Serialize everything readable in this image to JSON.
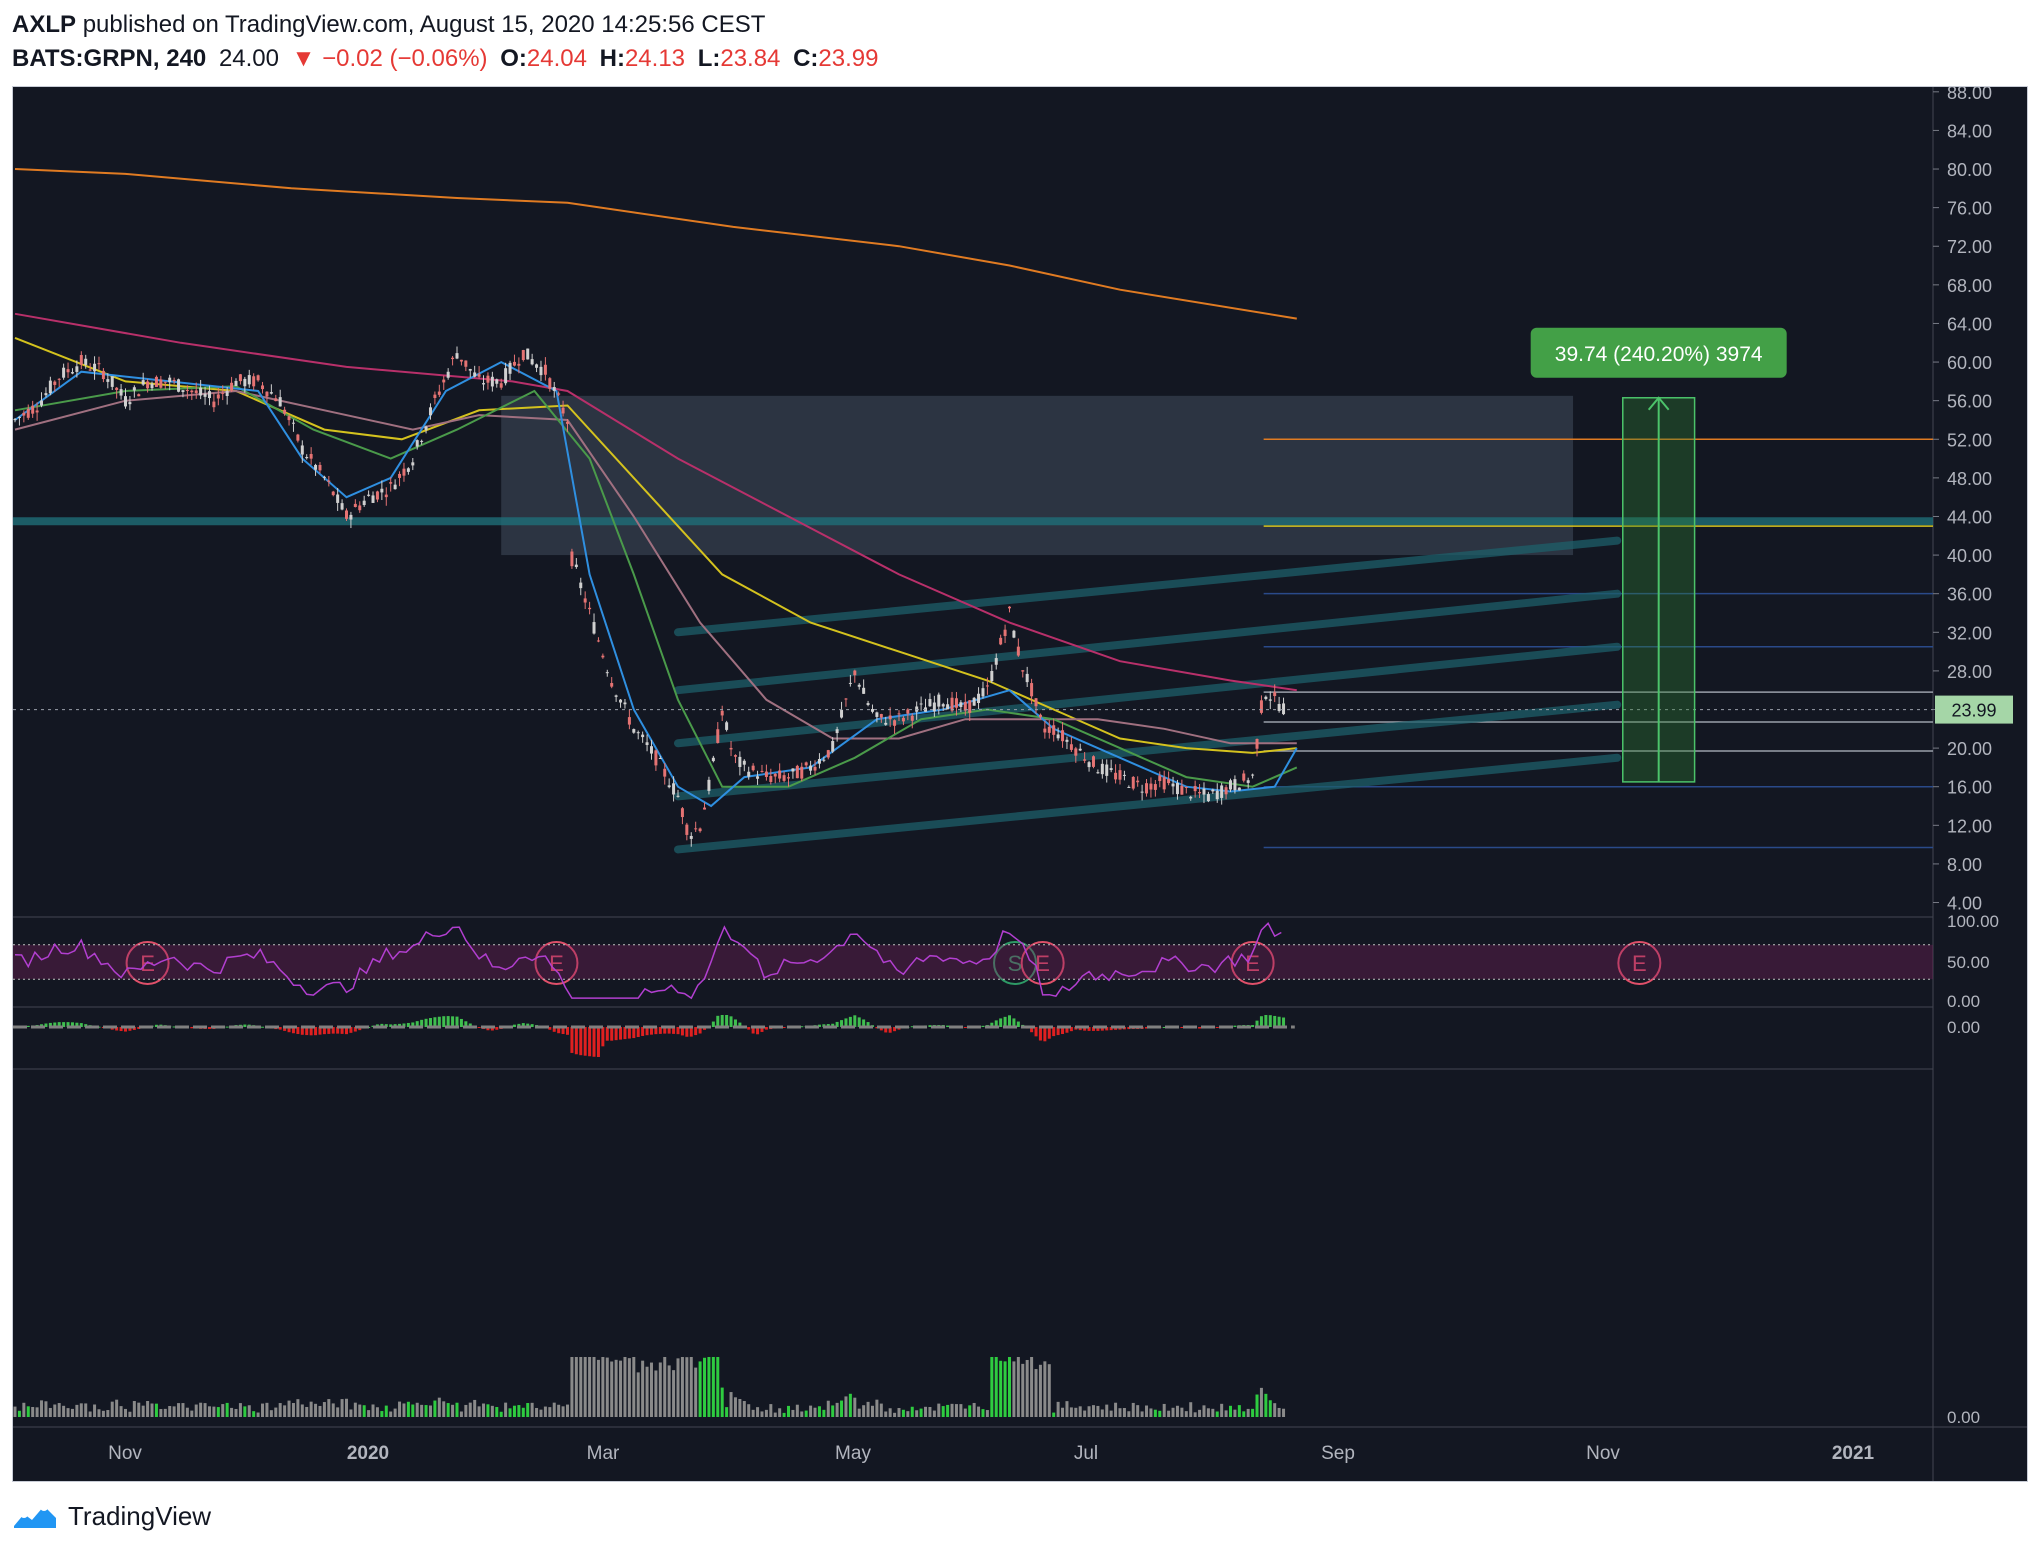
{
  "header": {
    "publisher": "AXLP",
    "published_text": "published on TradingView.com, August 15, 2020 14:25:56 CEST",
    "symbol": "BATS:GRPN, 240",
    "last": "24.00",
    "change": "▼ −0.02 (−0.06%)",
    "o_label": "O:",
    "o": "24.04",
    "h_label": "H:",
    "h": "24.13",
    "l_label": "L:",
    "l": "23.84",
    "c_label": "C:",
    "c": "23.99"
  },
  "footer": {
    "brand": "TradingView",
    "logo_icon": "tradingview-logo-icon"
  },
  "colors": {
    "background": "#131722",
    "candle_up": "#d0d0d0",
    "candle_down": "#e57373",
    "ma_orange": "#e07b22",
    "ma_magenta": "#b8306a",
    "ma_yellow": "#d4c21e",
    "ma_blue": "#2f8fe0",
    "ma_green": "#4a9a4a",
    "ma_pink": "#a07080",
    "channel": "#1e5f6a",
    "rsi": "#b23fd0",
    "measure_green": "#4cc36a"
  },
  "chart_data": {
    "type": "candlestick",
    "x_ticks": [
      "Nov",
      "2020",
      "Mar",
      "May",
      "Jul",
      "Sep",
      "Nov",
      "2021"
    ],
    "y_ticks": [
      "88.00",
      "84.00",
      "80.00",
      "76.00",
      "72.00",
      "68.00",
      "64.00",
      "60.00",
      "56.00",
      "52.00",
      "48.00",
      "44.00",
      "40.00",
      "36.00",
      "32.00",
      "28.00",
      "24.00",
      "20.00",
      "16.00",
      "12.00",
      "8.00",
      "4.00"
    ],
    "ylim": [
      2.5,
      88.5
    ],
    "last_price_label": "23.99",
    "price_path": [
      [
        0,
        54
      ],
      [
        20,
        55.5
      ],
      [
        40,
        58.5
      ],
      [
        60,
        60
      ],
      [
        80,
        59
      ],
      [
        100,
        56
      ],
      [
        120,
        58
      ],
      [
        140,
        58
      ],
      [
        160,
        57
      ],
      [
        180,
        56
      ],
      [
        200,
        58
      ],
      [
        220,
        58
      ],
      [
        240,
        56
      ],
      [
        260,
        51
      ],
      [
        280,
        48
      ],
      [
        300,
        44
      ],
      [
        320,
        46
      ],
      [
        340,
        47
      ],
      [
        360,
        50
      ],
      [
        380,
        56
      ],
      [
        400,
        61
      ],
      [
        420,
        58
      ],
      [
        440,
        58
      ],
      [
        460,
        61
      ],
      [
        480,
        59
      ],
      [
        500,
        54
      ],
      [
        503,
        40
      ],
      [
        520,
        34
      ],
      [
        540,
        27
      ],
      [
        560,
        22
      ],
      [
        580,
        19
      ],
      [
        600,
        15
      ],
      [
        610,
        11
      ],
      [
        620,
        12
      ],
      [
        630,
        17
      ],
      [
        640,
        24
      ],
      [
        650,
        19
      ],
      [
        660,
        18
      ],
      [
        680,
        17
      ],
      [
        700,
        17
      ],
      [
        720,
        18
      ],
      [
        740,
        20
      ],
      [
        760,
        28
      ],
      [
        770,
        25
      ],
      [
        780,
        23
      ],
      [
        800,
        23
      ],
      [
        820,
        24
      ],
      [
        840,
        25
      ],
      [
        860,
        24
      ],
      [
        880,
        26
      ],
      [
        900,
        34
      ],
      [
        910,
        29
      ],
      [
        920,
        26
      ],
      [
        930,
        22
      ],
      [
        940,
        22
      ],
      [
        960,
        20
      ],
      [
        980,
        18
      ],
      [
        1000,
        17
      ],
      [
        1020,
        16
      ],
      [
        1040,
        16.5
      ],
      [
        1060,
        15.5
      ],
      [
        1080,
        15
      ],
      [
        1100,
        16
      ],
      [
        1120,
        17
      ],
      [
        1130,
        26
      ],
      [
        1140,
        25
      ],
      [
        1150,
        24
      ]
    ],
    "moving_averages": [
      {
        "color_key": "ma_orange",
        "points": [
          [
            0,
            80
          ],
          [
            100,
            79.5
          ],
          [
            250,
            78
          ],
          [
            400,
            77
          ],
          [
            500,
            76.5
          ],
          [
            650,
            74
          ],
          [
            800,
            72
          ],
          [
            900,
            70
          ],
          [
            1000,
            67.5
          ],
          [
            1160,
            64.5
          ]
        ]
      },
      {
        "color_key": "ma_magenta",
        "points": [
          [
            0,
            65
          ],
          [
            150,
            62
          ],
          [
            300,
            59.5
          ],
          [
            450,
            58
          ],
          [
            500,
            57
          ],
          [
            600,
            50
          ],
          [
            700,
            44
          ],
          [
            800,
            38
          ],
          [
            900,
            33
          ],
          [
            1000,
            29
          ],
          [
            1100,
            27
          ],
          [
            1160,
            26
          ]
        ]
      },
      {
        "color_key": "ma_yellow",
        "points": [
          [
            0,
            62.5
          ],
          [
            100,
            58
          ],
          [
            200,
            57
          ],
          [
            280,
            53
          ],
          [
            350,
            52
          ],
          [
            420,
            55
          ],
          [
            500,
            55.5
          ],
          [
            560,
            48
          ],
          [
            640,
            38
          ],
          [
            720,
            33
          ],
          [
            800,
            30
          ],
          [
            880,
            27
          ],
          [
            940,
            24
          ],
          [
            1000,
            21
          ],
          [
            1060,
            20
          ],
          [
            1120,
            19.5
          ],
          [
            1160,
            20
          ]
        ]
      },
      {
        "color_key": "ma_pink",
        "points": [
          [
            0,
            53
          ],
          [
            100,
            56
          ],
          [
            200,
            57
          ],
          [
            280,
            55
          ],
          [
            360,
            53
          ],
          [
            420,
            54.5
          ],
          [
            500,
            54
          ],
          [
            560,
            44
          ],
          [
            620,
            33
          ],
          [
            680,
            25
          ],
          [
            740,
            21
          ],
          [
            800,
            21
          ],
          [
            860,
            23
          ],
          [
            920,
            23
          ],
          [
            980,
            23
          ],
          [
            1040,
            22
          ],
          [
            1100,
            20.5
          ],
          [
            1160,
            20.5
          ]
        ]
      },
      {
        "color_key": "ma_green",
        "points": [
          [
            0,
            55
          ],
          [
            100,
            57
          ],
          [
            200,
            57.5
          ],
          [
            270,
            53
          ],
          [
            340,
            50
          ],
          [
            400,
            53
          ],
          [
            470,
            57
          ],
          [
            520,
            50
          ],
          [
            560,
            38
          ],
          [
            600,
            25
          ],
          [
            640,
            16
          ],
          [
            700,
            16
          ],
          [
            760,
            19
          ],
          [
            820,
            23
          ],
          [
            880,
            24
          ],
          [
            940,
            23
          ],
          [
            1000,
            20
          ],
          [
            1060,
            17
          ],
          [
            1120,
            16
          ],
          [
            1160,
            18
          ]
        ]
      },
      {
        "color_key": "ma_blue",
        "points": [
          [
            0,
            54
          ],
          [
            60,
            59
          ],
          [
            140,
            58
          ],
          [
            220,
            57
          ],
          [
            260,
            50
          ],
          [
            300,
            46
          ],
          [
            340,
            48
          ],
          [
            390,
            57
          ],
          [
            440,
            60
          ],
          [
            490,
            57
          ],
          [
            520,
            38
          ],
          [
            560,
            24
          ],
          [
            600,
            16
          ],
          [
            630,
            14
          ],
          [
            660,
            17
          ],
          [
            720,
            18
          ],
          [
            780,
            23
          ],
          [
            840,
            24
          ],
          [
            900,
            26
          ],
          [
            940,
            22
          ],
          [
            1000,
            19
          ],
          [
            1060,
            16
          ],
          [
            1100,
            15.5
          ],
          [
            1140,
            16
          ],
          [
            1160,
            20
          ]
        ]
      }
    ],
    "channel_lines": [
      [
        600,
        9.5,
        1450,
        19
      ],
      [
        600,
        15,
        1450,
        24.5
      ],
      [
        600,
        20.5,
        1450,
        30.5
      ],
      [
        600,
        26,
        1450,
        36
      ],
      [
        600,
        32,
        1450,
        41.5
      ]
    ],
    "horizontal_levels": [
      {
        "y": 52,
        "color_key": "ma_orange"
      },
      {
        "y": 43,
        "color_key": "ma_yellow"
      },
      {
        "y": 36,
        "color": "#2a4a8a"
      },
      {
        "y": 30.5,
        "color": "#2a4a8a"
      },
      {
        "y": 25.8,
        "color": "#9aa0aa"
      },
      {
        "y": 22.7,
        "color": "#9aa0aa"
      },
      {
        "y": 19.7,
        "color": "#9aa0aa"
      },
      {
        "y": 16,
        "color": "#2a4a8a"
      },
      {
        "y": 9.7,
        "color": "#2a4a8a"
      }
    ],
    "resistance_line": 43.5,
    "zone": {
      "x0": 440,
      "x1": 1410,
      "y0": 40,
      "y1": 56.5
    },
    "measure": {
      "x0": 1455,
      "x1": 1520,
      "y0": 16.5,
      "y1": 56.3,
      "label": "39.74 (240.20%) 3974"
    },
    "events": [
      {
        "x": 120,
        "label": "E"
      },
      {
        "x": 490,
        "label": "E"
      },
      {
        "x": 905,
        "label": "S"
      },
      {
        "x": 930,
        "label": "E"
      },
      {
        "x": 1120,
        "label": "E"
      },
      {
        "x": 1470,
        "label": "E"
      }
    ],
    "rsi": {
      "ticks": [
        "100.00",
        "50.00",
        "0.00"
      ],
      "upper": 70,
      "lower": 30
    },
    "macd": {
      "ticks": [
        "0.00"
      ]
    },
    "volume": {
      "ticks": [
        "0.00"
      ]
    }
  }
}
